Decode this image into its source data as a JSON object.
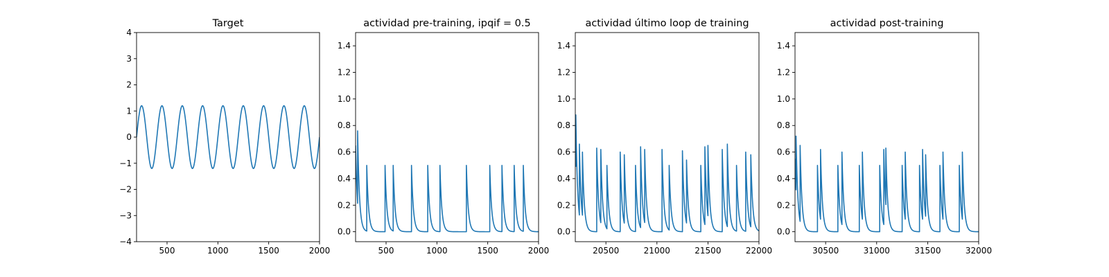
{
  "chart_data": [
    {
      "type": "line",
      "title": "Target",
      "xlim": [
        200,
        2000
      ],
      "ylim": [
        -4,
        4
      ],
      "xticks": [
        500,
        1000,
        1500,
        2000
      ],
      "xtick_labels": [
        "500",
        "1000",
        "1500",
        "2000"
      ],
      "yticks": [
        -4,
        -3,
        -2,
        -1,
        0,
        1,
        2,
        3,
        4
      ],
      "ytick_labels": [
        "−4",
        "−3",
        "−2",
        "−1",
        "0",
        "1",
        "2",
        "3",
        "4"
      ],
      "grid": false,
      "line_color": "#1f77b4",
      "series": [
        {
          "kind": "sine",
          "amplitude": 1.2,
          "period": 200,
          "phase_x": 0,
          "x_start": 200,
          "x_end": 2000
        }
      ]
    },
    {
      "type": "line",
      "title": "actividad pre-training, ipqif = 0.5",
      "xlim": [
        200,
        2000
      ],
      "ylim": [
        -0.075,
        1.5
      ],
      "xticks": [
        500,
        1000,
        1500,
        2000
      ],
      "xtick_labels": [
        "500",
        "1000",
        "1500",
        "2000"
      ],
      "yticks": [
        0.0,
        0.2,
        0.4,
        0.6,
        0.8,
        1.0,
        1.2,
        1.4
      ],
      "ytick_labels": [
        "0.0",
        "0.2",
        "0.4",
        "0.6",
        "0.8",
        "1.0",
        "1.2",
        "1.4"
      ],
      "grid": false,
      "line_color": "#1f77b4",
      "series": [
        {
          "kind": "spikes",
          "x_start": 200,
          "x_end": 2000,
          "initial_value": 0.65,
          "decay": 18,
          "spikes": [
            {
              "x": 220,
              "height": 0.76
            },
            {
              "x": 310,
              "height": 0.5
            },
            {
              "x": 490,
              "height": 0.5
            },
            {
              "x": 570,
              "height": 0.5
            },
            {
              "x": 750,
              "height": 0.5
            },
            {
              "x": 910,
              "height": 0.5
            },
            {
              "x": 1030,
              "height": 0.5
            },
            {
              "x": 1290,
              "height": 0.5
            },
            {
              "x": 1520,
              "height": 0.5
            },
            {
              "x": 1640,
              "height": 0.5
            },
            {
              "x": 1760,
              "height": 0.5
            },
            {
              "x": 1850,
              "height": 0.5
            }
          ]
        }
      ]
    },
    {
      "type": "line",
      "title": "actividad último loop de training",
      "xlim": [
        20200,
        22000
      ],
      "ylim": [
        -0.075,
        1.5
      ],
      "xticks": [
        20500,
        21000,
        21500,
        22000
      ],
      "xtick_labels": [
        "20500",
        "21000",
        "21500",
        "22000"
      ],
      "yticks": [
        0.0,
        0.2,
        0.4,
        0.6,
        0.8,
        1.0,
        1.2,
        1.4
      ],
      "ytick_labels": [
        "0.0",
        "0.2",
        "0.4",
        "0.6",
        "0.8",
        "1.0",
        "1.2",
        "1.4"
      ],
      "grid": false,
      "line_color": "#1f77b4",
      "series": [
        {
          "kind": "spikes",
          "x_start": 20200,
          "x_end": 22000,
          "initial_value": 0.65,
          "decay": 18,
          "spikes": [
            {
              "x": 20205,
              "height": 0.88
            },
            {
              "x": 20240,
              "height": 0.66
            },
            {
              "x": 20270,
              "height": 0.6
            },
            {
              "x": 20410,
              "height": 0.63
            },
            {
              "x": 20450,
              "height": 0.62
            },
            {
              "x": 20510,
              "height": 0.5
            },
            {
              "x": 20640,
              "height": 0.6
            },
            {
              "x": 20680,
              "height": 0.58
            },
            {
              "x": 20790,
              "height": 0.5
            },
            {
              "x": 20840,
              "height": 0.64
            },
            {
              "x": 20880,
              "height": 0.62
            },
            {
              "x": 21050,
              "height": 0.62
            },
            {
              "x": 21120,
              "height": 0.5
            },
            {
              "x": 21250,
              "height": 0.61
            },
            {
              "x": 21290,
              "height": 0.54
            },
            {
              "x": 21430,
              "height": 0.5
            },
            {
              "x": 21470,
              "height": 0.64
            },
            {
              "x": 21500,
              "height": 0.65
            },
            {
              "x": 21640,
              "height": 0.62
            },
            {
              "x": 21690,
              "height": 0.66
            },
            {
              "x": 21780,
              "height": 0.5
            },
            {
              "x": 21870,
              "height": 0.6
            },
            {
              "x": 21920,
              "height": 0.58
            }
          ]
        }
      ]
    },
    {
      "type": "line",
      "title": "actividad post-training",
      "xlim": [
        30200,
        32000
      ],
      "ylim": [
        -0.075,
        1.5
      ],
      "xticks": [
        30500,
        31000,
        31500,
        32000
      ],
      "xtick_labels": [
        "30500",
        "31000",
        "31500",
        "32000"
      ],
      "yticks": [
        0.0,
        0.2,
        0.4,
        0.6,
        0.8,
        1.0,
        1.2,
        1.4
      ],
      "ytick_labels": [
        "0.0",
        "0.2",
        "0.4",
        "0.6",
        "0.8",
        "1.0",
        "1.2",
        "1.4"
      ],
      "grid": false,
      "line_color": "#1f77b4",
      "series": [
        {
          "kind": "spikes",
          "x_start": 30200,
          "x_end": 32000,
          "initial_value": 0.55,
          "decay": 18,
          "spikes": [
            {
              "x": 30210,
              "height": 0.72
            },
            {
              "x": 30250,
              "height": 0.65
            },
            {
              "x": 30420,
              "height": 0.5
            },
            {
              "x": 30450,
              "height": 0.62
            },
            {
              "x": 30620,
              "height": 0.5
            },
            {
              "x": 30660,
              "height": 0.6
            },
            {
              "x": 30830,
              "height": 0.5
            },
            {
              "x": 30860,
              "height": 0.6
            },
            {
              "x": 31030,
              "height": 0.5
            },
            {
              "x": 31070,
              "height": 0.62
            },
            {
              "x": 31090,
              "height": 0.63
            },
            {
              "x": 31250,
              "height": 0.5
            },
            {
              "x": 31280,
              "height": 0.6
            },
            {
              "x": 31420,
              "height": 0.5
            },
            {
              "x": 31450,
              "height": 0.62
            },
            {
              "x": 31480,
              "height": 0.58
            },
            {
              "x": 31620,
              "height": 0.5
            },
            {
              "x": 31650,
              "height": 0.6
            },
            {
              "x": 31810,
              "height": 0.5
            },
            {
              "x": 31840,
              "height": 0.6
            }
          ]
        }
      ]
    }
  ]
}
